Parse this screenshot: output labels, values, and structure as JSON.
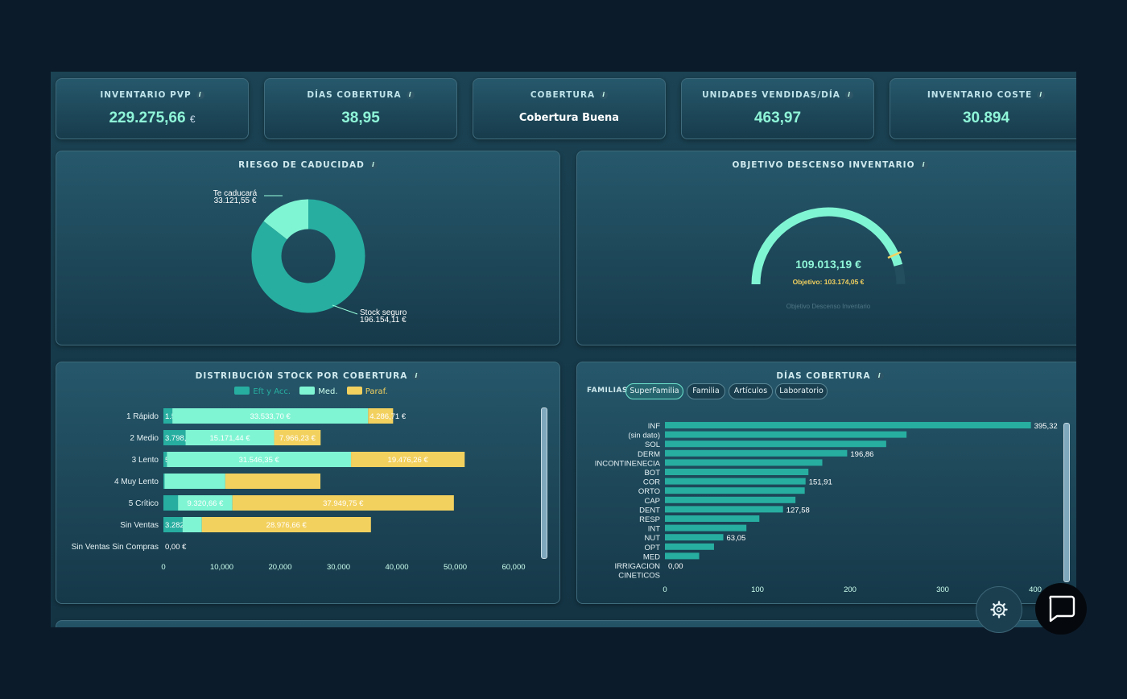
{
  "kpis": [
    {
      "title": "INVENTARIO PVP",
      "value": "229.275,66",
      "unit": "€"
    },
    {
      "title": "DÍAS COBERTURA",
      "value": "38,95"
    },
    {
      "title": "COBERTURA",
      "value": "Cobertura Buena"
    },
    {
      "title": "UNIDADES VENDIDAS/DÍA",
      "value": "463,97"
    },
    {
      "title": "INVENTARIO COSTE",
      "value": "30.894"
    }
  ],
  "riesgo": {
    "title": "RIESGO DE CADUCIDAD",
    "slices": [
      {
        "label": "Te caducará",
        "value_text": "33.121,55 €",
        "value": 33121.55,
        "color": "#80f5d3"
      },
      {
        "label": "Stock seguro",
        "value_text": "196.154,11 €",
        "value": 196154.11,
        "color": "#27aea0"
      }
    ]
  },
  "objetivo": {
    "title": "OBJETIVO DESCENSO INVENTARIO",
    "value_text": "109.013,19 €",
    "target_text": "Objetivo: 103.174,05 €",
    "caption": "Objetivo Descenso Inventario",
    "value": 109013.19,
    "target": 103174.05,
    "max": 119000
  },
  "distribucion": {
    "title": "DISTRIBUCIÓN STOCK POR COBERTURA",
    "legend": [
      "Eft y Acc.",
      "Med.",
      "Paraf."
    ],
    "colors": [
      "#27aea0",
      "#80f5d3",
      "#f3d15f"
    ],
    "categories": [
      "1 Rápido",
      "2 Medio",
      "3 Lento",
      "4 Muy Lento",
      "5 Crítico",
      "Sin Ventas",
      "Sin Ventas Sin Compras"
    ],
    "series": [
      {
        "name": "Eft y Acc.",
        "values": [
          1534.95,
          3798.41,
          597.59,
          200,
          2500,
          3282.11,
          0
        ],
        "labels": [
          "1.534,95 €",
          "3.798,41 €",
          "597,59 €",
          "",
          "",
          "3.282,11 €",
          "0,00 €"
        ]
      },
      {
        "name": "Med.",
        "values": [
          33533.7,
          15171.44,
          31546.35,
          10400,
          9320.66,
          3300,
          0
        ],
        "labels": [
          "33.533,70 €",
          "15.171,44 €",
          "31.546,35 €",
          "",
          "9.320,66 €",
          "",
          ""
        ]
      },
      {
        "name": "Paraf.",
        "values": [
          4286.71,
          7966.23,
          19476.26,
          16300,
          37949.75,
          28976.66,
          0
        ],
        "labels": [
          "4.286,71 €",
          "7.966,23 €",
          "19.476,26 €",
          "",
          "37.949,75 €",
          "28.976,66 €",
          ""
        ]
      }
    ],
    "xticks": [
      "0",
      "10,000",
      "20,000",
      "30,000",
      "40,000",
      "50,000",
      "60,000"
    ],
    "xmax": 60000
  },
  "dias": {
    "title": "DÍAS COBERTURA",
    "filter_label": "FAMILIAS",
    "chips": [
      "SuperFamilia",
      "Familia",
      "Artículos",
      "Laboratorio"
    ],
    "active_chip": "SuperFamilia",
    "color": "#27aea0",
    "categories": [
      "INF",
      "(sin dato)",
      "SOL",
      "DERM",
      "INCONTINENECIA",
      "BOT",
      "COR",
      "ORTO",
      "CAP",
      "DENT",
      "RESP",
      "INT",
      "NUT",
      "OPT",
      "MED",
      "IRRIGACION",
      "CINETICOS"
    ],
    "values": [
      395.32,
      261,
      239,
      196.86,
      170,
      155,
      151.91,
      151,
      141,
      127.58,
      102,
      88,
      63.05,
      53,
      37,
      0,
      0
    ],
    "labels": [
      "395,32",
      "",
      "",
      "196,86",
      "",
      "",
      "151,91",
      "",
      "",
      "127,58",
      "",
      "",
      "63,05",
      "",
      "",
      "0,00",
      ""
    ],
    "xticks": [
      "0",
      "100",
      "200",
      "300",
      "400"
    ],
    "xmax": 400
  }
}
